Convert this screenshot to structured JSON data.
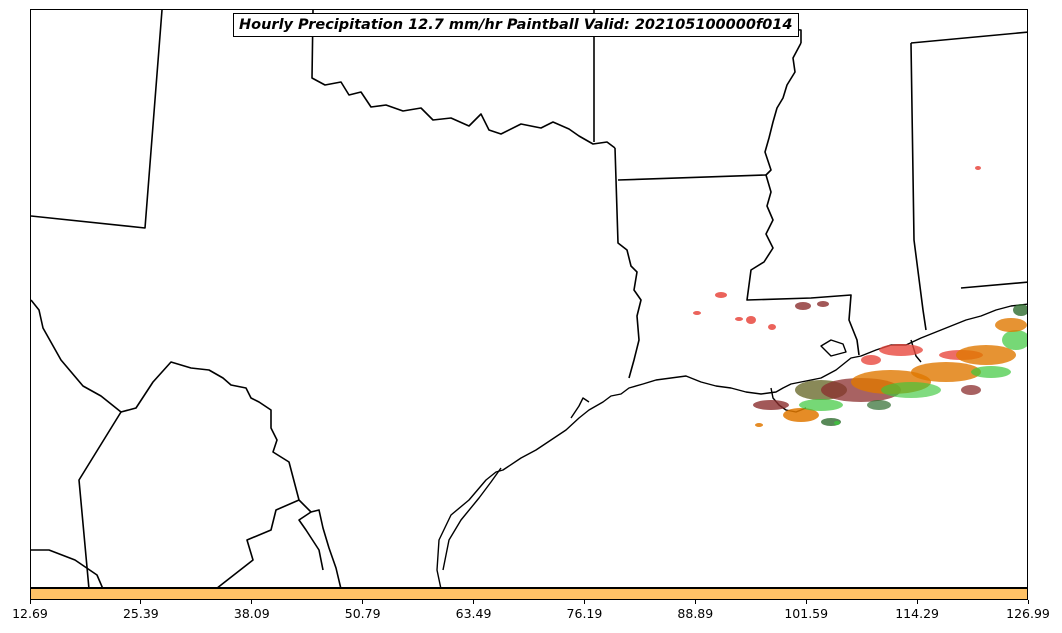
{
  "title": "Hourly Precipitation 12.7 mm/hr Paintball Valid: 202105100000f014",
  "colorbar": {
    "color": "#ffc266",
    "ticks": [
      "12.69",
      "25.39",
      "38.09",
      "50.79",
      "63.49",
      "76.19",
      "88.89",
      "101.59",
      "114.29",
      "126.99"
    ]
  },
  "paintball_colors": [
    "#e8483e",
    "#8b2e2e",
    "#e07800",
    "#3cc83c",
    "#2e6b2e",
    "#6b6b2e"
  ]
}
